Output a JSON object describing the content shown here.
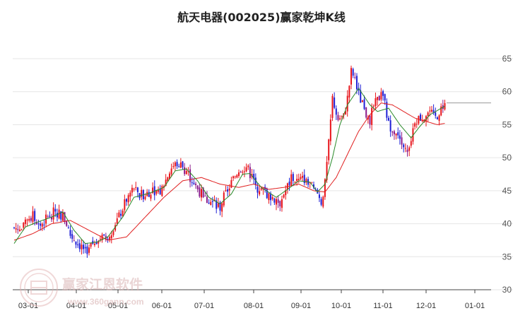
{
  "chart_data": {
    "type": "candlestick",
    "title": "航天电器(002025)赢家乾坤K线",
    "ylim": [
      30,
      68
    ],
    "yticks": [
      30,
      35,
      40,
      45,
      50,
      55,
      60,
      65
    ],
    "x_labels": [
      "03-01",
      "04-01",
      "05-01",
      "06-01",
      "07-01",
      "08-01",
      "09-01",
      "10-01",
      "11-01",
      "12-01",
      "01-01"
    ],
    "last_price": 58.3,
    "path_points": [
      [
        0,
        39.4
      ],
      [
        4,
        39.0
      ],
      [
        8,
        40.8
      ],
      [
        10,
        41.2
      ],
      [
        14,
        39.8
      ],
      [
        18,
        41.0
      ],
      [
        22,
        41.9
      ],
      [
        26,
        41.2
      ],
      [
        28,
        40.0
      ],
      [
        30,
        38.3
      ],
      [
        34,
        37.0
      ],
      [
        37,
        36.3
      ],
      [
        40,
        36.0
      ],
      [
        43,
        37.5
      ],
      [
        46,
        38.0
      ],
      [
        48,
        37.6
      ],
      [
        52,
        39.0
      ],
      [
        54,
        40.2
      ],
      [
        56,
        41.0
      ],
      [
        60,
        43.7
      ],
      [
        64,
        45.5
      ],
      [
        66,
        44.2
      ],
      [
        70,
        44.5
      ],
      [
        74,
        45.2
      ],
      [
        76,
        45.0
      ],
      [
        78,
        44.8
      ],
      [
        80,
        46.0
      ],
      [
        84,
        48.5
      ],
      [
        88,
        49.3
      ],
      [
        92,
        48.0
      ],
      [
        94,
        47.0
      ],
      [
        98,
        45.3
      ],
      [
        102,
        43.8
      ],
      [
        106,
        43.2
      ],
      [
        110,
        42.5
      ],
      [
        112,
        44.0
      ],
      [
        116,
        46.2
      ],
      [
        120,
        48.3
      ],
      [
        124,
        48.7
      ],
      [
        128,
        46.5
      ],
      [
        130,
        45.5
      ],
      [
        134,
        44.7
      ],
      [
        138,
        44.0
      ],
      [
        142,
        43.2
      ],
      [
        144,
        44.5
      ],
      [
        148,
        46.8
      ],
      [
        152,
        46.5
      ],
      [
        156,
        46.9
      ],
      [
        160,
        45.0
      ],
      [
        162,
        44.5
      ],
      [
        164,
        43.3
      ],
      [
        166,
        46.0
      ],
      [
        168,
        52.0
      ],
      [
        170,
        59.0
      ],
      [
        172,
        57.0
      ],
      [
        174,
        56.0
      ],
      [
        176,
        56.2
      ],
      [
        178,
        59.0
      ],
      [
        180,
        63.0
      ],
      [
        182,
        62.0
      ],
      [
        184,
        59.5
      ],
      [
        186,
        58.0
      ],
      [
        188,
        56.5
      ],
      [
        190,
        55.8
      ],
      [
        192,
        57.8
      ],
      [
        196,
        59.5
      ],
      [
        198,
        58.0
      ],
      [
        200,
        55.0
      ],
      [
        202,
        54.5
      ],
      [
        206,
        53.5
      ],
      [
        208,
        52.0
      ],
      [
        210,
        50.5
      ],
      [
        212,
        53.0
      ],
      [
        214,
        55.8
      ],
      [
        218,
        56.2
      ],
      [
        222,
        57.0
      ],
      [
        224,
        56.0
      ],
      [
        226,
        56.5
      ],
      [
        228,
        57.5
      ],
      [
        230,
        58.3
      ]
    ],
    "ma_short_points": [
      [
        0,
        37.0
      ],
      [
        6,
        39.5
      ],
      [
        12,
        40.2
      ],
      [
        20,
        41.0
      ],
      [
        26,
        41.8
      ],
      [
        32,
        39.0
      ],
      [
        38,
        37.0
      ],
      [
        44,
        37.2
      ],
      [
        50,
        38.0
      ],
      [
        58,
        41.0
      ],
      [
        64,
        44.0
      ],
      [
        72,
        44.6
      ],
      [
        80,
        45.5
      ],
      [
        86,
        48.0
      ],
      [
        92,
        48.3
      ],
      [
        98,
        46.5
      ],
      [
        104,
        44.0
      ],
      [
        110,
        43.0
      ],
      [
        116,
        44.5
      ],
      [
        122,
        47.5
      ],
      [
        126,
        47.6
      ],
      [
        132,
        45.5
      ],
      [
        140,
        44.0
      ],
      [
        146,
        45.2
      ],
      [
        152,
        46.5
      ],
      [
        158,
        46.3
      ],
      [
        162,
        44.8
      ],
      [
        166,
        46.0
      ],
      [
        170,
        50.0
      ],
      [
        174,
        55.0
      ],
      [
        178,
        58.0
      ],
      [
        184,
        60.5
      ],
      [
        190,
        58.0
      ],
      [
        194,
        57.0
      ],
      [
        200,
        57.5
      ],
      [
        206,
        55.0
      ],
      [
        212,
        53.0
      ],
      [
        216,
        54.5
      ],
      [
        222,
        56.5
      ],
      [
        230,
        57.8
      ]
    ],
    "ma_long_points": [
      [
        0,
        37.5
      ],
      [
        10,
        38.5
      ],
      [
        20,
        40.0
      ],
      [
        30,
        40.5
      ],
      [
        40,
        39.0
      ],
      [
        50,
        37.5
      ],
      [
        60,
        38.0
      ],
      [
        70,
        41.0
      ],
      [
        80,
        44.0
      ],
      [
        90,
        46.5
      ],
      [
        100,
        47.0
      ],
      [
        110,
        46.0
      ],
      [
        120,
        45.5
      ],
      [
        128,
        46.0
      ],
      [
        136,
        45.2
      ],
      [
        144,
        45.5
      ],
      [
        152,
        46.0
      ],
      [
        160,
        45.0
      ],
      [
        166,
        44.8
      ],
      [
        172,
        47.0
      ],
      [
        178,
        50.5
      ],
      [
        184,
        54.0
      ],
      [
        190,
        56.5
      ],
      [
        196,
        58.3
      ],
      [
        202,
        58.0
      ],
      [
        208,
        57.0
      ],
      [
        214,
        56.0
      ],
      [
        220,
        55.5
      ],
      [
        226,
        55.0
      ],
      [
        230,
        55.2
      ]
    ]
  },
  "watermark": {
    "text": "赢家江恩软件",
    "url": "www.360gann.com"
  },
  "colors": {
    "up": "#e8141b",
    "down": "#1f1fd6",
    "ma_short": "#2a8a2a",
    "ma_long": "#e02020",
    "grid": "#e6e6e6"
  }
}
